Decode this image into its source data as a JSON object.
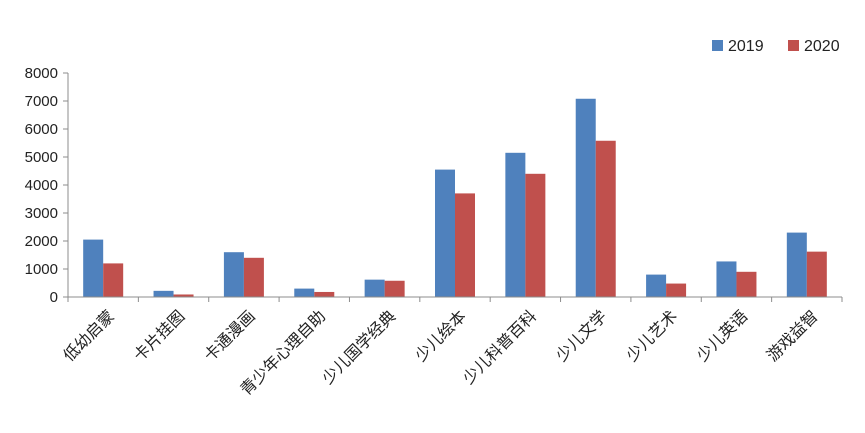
{
  "chart_data": {
    "type": "bar",
    "categories": [
      "低幼启蒙",
      "卡片挂图",
      "卡通漫画",
      "青少年心理自助",
      "少儿国学经典",
      "少儿绘本",
      "少儿科普百科",
      "少儿文学",
      "少儿艺术",
      "少儿英语",
      "游戏益智"
    ],
    "series": [
      {
        "name": "2019",
        "color": "#4F81BD",
        "values": [
          2050,
          220,
          1600,
          300,
          620,
          4550,
          5150,
          7080,
          800,
          1270,
          2300
        ]
      },
      {
        "name": "2020",
        "color": "#C0504D",
        "values": [
          1200,
          90,
          1400,
          180,
          580,
          3700,
          4400,
          5580,
          480,
          900,
          1620
        ]
      }
    ],
    "ylim": [
      0,
      8000
    ],
    "yticks": [
      0,
      1000,
      2000,
      3000,
      4000,
      5000,
      6000,
      7000,
      8000
    ],
    "title": "",
    "xlabel": "",
    "ylabel": "",
    "legend_position": "top-right",
    "grid": false
  }
}
